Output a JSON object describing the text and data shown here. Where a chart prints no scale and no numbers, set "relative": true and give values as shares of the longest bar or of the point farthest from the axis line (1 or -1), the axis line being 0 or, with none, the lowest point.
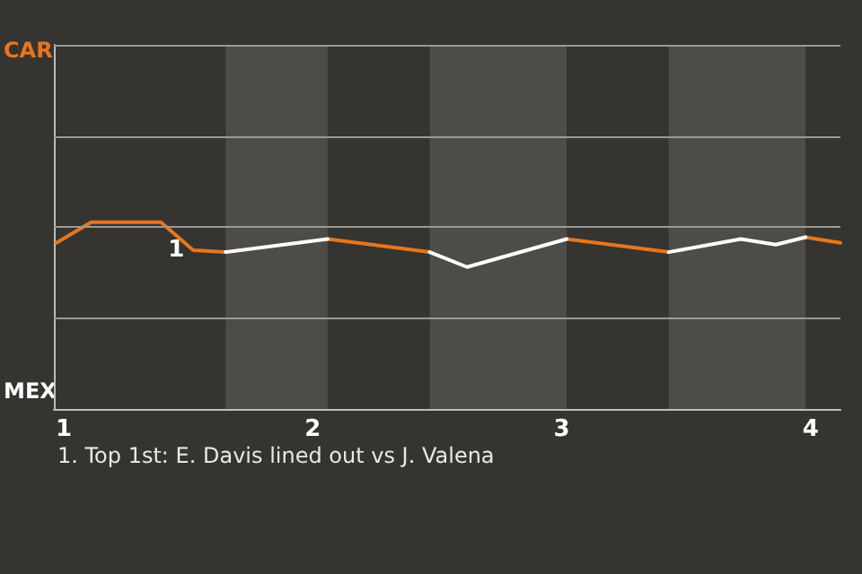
{
  "chart_data": {
    "type": "line",
    "relative": true,
    "xlim": [
      0.96,
      4.12
    ],
    "xticks": [
      1,
      2,
      3,
      4
    ],
    "marker": "none",
    "ref_lines": [
      {
        "axis": "y",
        "value": 0.49,
        "color": "#9a9a9a"
      },
      {
        "axis": "y",
        "value": 0.98,
        "color": "#9a9a9a"
      },
      {
        "axis": "y",
        "value": 1.46,
        "color": "#9a9a9a"
      },
      {
        "axis": "y",
        "value": 1.95,
        "color": "#9a9a9a"
      }
    ],
    "line_style": "solid",
    "series": [
      {
        "color": "#e8761c",
        "x": [
          0.97,
          1.11,
          1.39,
          1.52,
          1.65,
          1.85,
          2.06,
          2.47,
          2.7,
          3.02,
          3.43,
          3.7,
          3.98,
          4.12
        ],
        "values": [
          0.89,
          1,
          1,
          0.85,
          0.84,
          null,
          0.91,
          0.84,
          null,
          0.91,
          0.84,
          null,
          0.92,
          0.89
        ]
      },
      {
        "color": "#ffffff",
        "x": [
          1.65,
          2.06,
          2.3,
          2.47,
          2.62,
          3.02,
          3.2,
          3.43,
          3.72,
          3.86,
          3.98
        ],
        "values": [
          0.84,
          0.91,
          null,
          0.84,
          0.76,
          0.91,
          null,
          0.84,
          0.91,
          0.88,
          0.92
        ]
      }
    ],
    "bands": [
      {
        "axis": "x",
        "from": 1.65,
        "to": 2.06,
        "color": "#4d4c49"
      },
      {
        "axis": "x",
        "from": 2.47,
        "to": 3.02,
        "color": "#4d4c49"
      },
      {
        "axis": "x",
        "from": 3.43,
        "to": 3.98,
        "color": "#4d4c49"
      }
    ],
    "annotations": [
      "CAR",
      "MEX",
      {
        "text": "1",
        "x": 1.52,
        "y": 0.85
      },
      "1. Top 1st: E. Davis lined out vs J. Valena"
    ]
  }
}
